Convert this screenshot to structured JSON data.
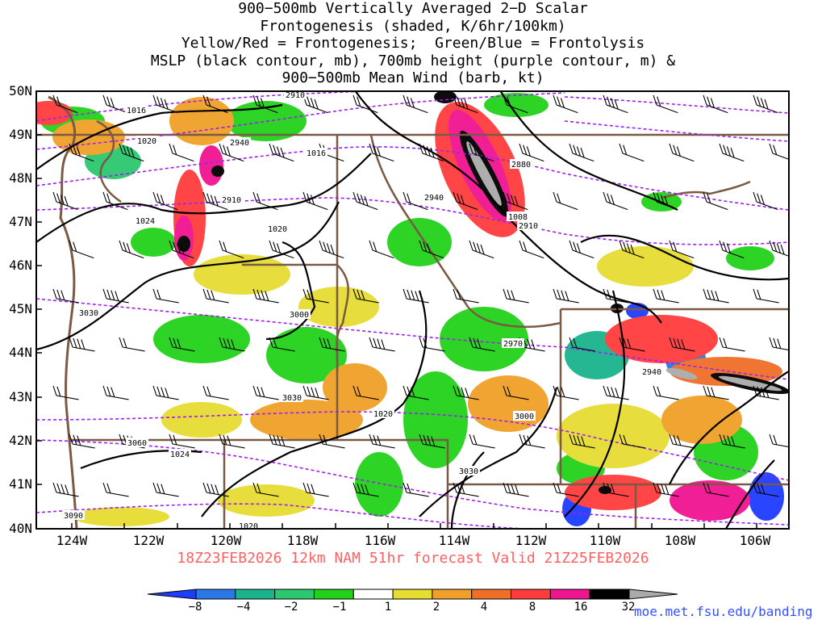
{
  "title_lines": [
    "900−500mb Vertically Averaged 2−D Scalar",
    "Frontogenesis (shaded, K/6hr/100km)",
    "Yellow/Red = Frontogenesis;  Green/Blue = Frontolysis",
    "MSLP (black contour, mb), 700mb height (purple contour, m) &",
    "900−500mb Mean Wind (barb, kt)"
  ],
  "lat_labels": [
    "50N",
    "49N",
    "48N",
    "47N",
    "46N",
    "45N",
    "44N",
    "43N",
    "42N",
    "41N",
    "40N"
  ],
  "lon_labels": [
    "124W",
    "122W",
    "120W",
    "118W",
    "116W",
    "114W",
    "112W",
    "110W",
    "108W",
    "106W"
  ],
  "mslp_labels": [
    "1016",
    "1020",
    "1016",
    "1024",
    "1020",
    "1008",
    "1020",
    "1024",
    "1020"
  ],
  "height_labels": [
    "2910",
    "2940",
    "2910",
    "2940",
    "2880",
    "2910",
    "3030",
    "3000",
    "2970",
    "2940",
    "3030",
    "3000",
    "3060",
    "3030",
    "3090"
  ],
  "forecast_line": "18Z23FEB2026 12km NAM 51hr forecast Valid 21Z25FEB2026",
  "credit": "moe.met.fsu.edu/banding",
  "colorbar": {
    "labels": [
      "−8",
      "−4",
      "−2",
      "−1",
      "1",
      "2",
      "4",
      "8",
      "16",
      "32"
    ],
    "colors": [
      "#1e3cff",
      "#2a78e6",
      "#19b48c",
      "#2cc870",
      "#22d21a",
      "#ffffff",
      "#e6dc32",
      "#f0a028",
      "#f06e28",
      "#ff3c3c",
      "#f01490",
      "#000000",
      "#aaaaaa"
    ]
  },
  "colors": {
    "mslp": "#000000",
    "height": "#a020f0",
    "border": "#7a5a45",
    "forecast": "#ff6060",
    "credit": "#3050ff"
  }
}
